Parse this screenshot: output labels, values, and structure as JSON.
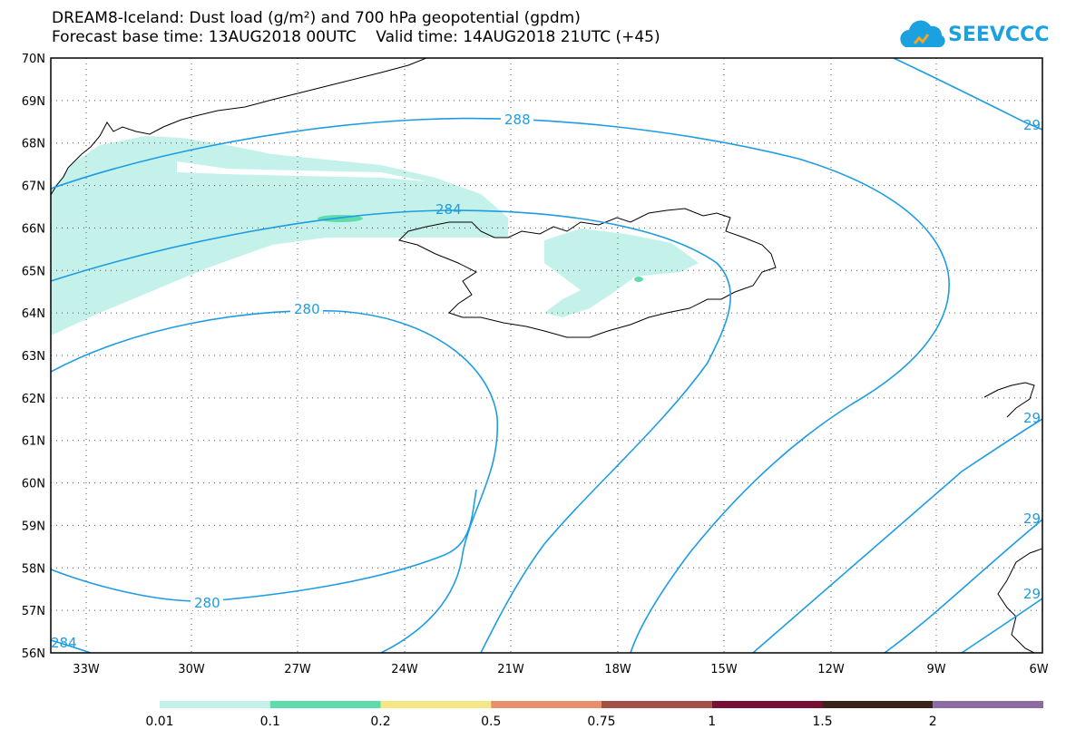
{
  "title_line1": "DREAM8-Iceland: Dust load (g/m²) and 700 hPa geopotential (gpdm)",
  "title_line2": "Forecast base time: 13AUG2018 00UTC    Valid time: 14AUG2018 21UTC (+45)",
  "logo": {
    "text": "SEEVCCC",
    "icon": "cloud-icon",
    "color": "#1ba0e0"
  },
  "lat_labels": [
    "70N",
    "69N",
    "68N",
    "67N",
    "66N",
    "65N",
    "64N",
    "63N",
    "62N",
    "61N",
    "60N",
    "59N",
    "58N",
    "57N",
    "56N"
  ],
  "lon_labels": [
    "33W",
    "30W",
    "27W",
    "24W",
    "21W",
    "18W",
    "15W",
    "12W",
    "9W",
    "6W"
  ],
  "contour_labels": [
    "288",
    "284",
    "280",
    "280",
    "284",
    "29",
    "29",
    "29",
    "29"
  ],
  "contour_color": "#1e9ce3",
  "legend": {
    "labels": [
      "0.01",
      "0.1",
      "0.2",
      "0.5",
      "0.75",
      "1",
      "1.5",
      "2"
    ],
    "colors": [
      "#c4f2ea",
      "#5fdcae",
      "#f5e686",
      "#e88e6a",
      "#a64f47",
      "#7a0f35",
      "#3a2318",
      "#8e6aa3"
    ]
  }
}
